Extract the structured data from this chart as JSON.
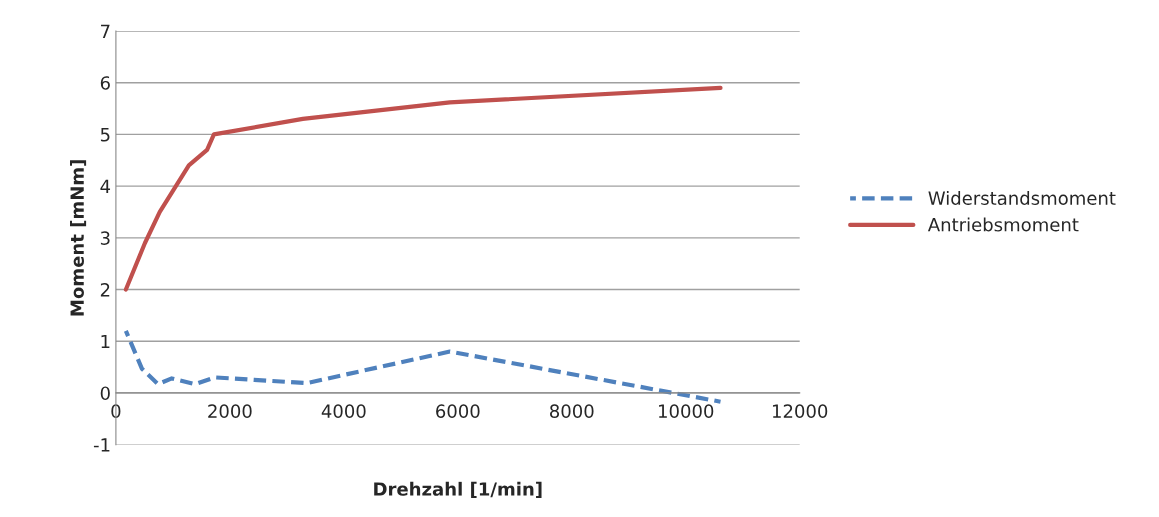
{
  "chart_data": {
    "type": "line",
    "xlabel": "Drehzahl [1/min]",
    "ylabel": "Moment [mNm]",
    "xlim": [
      0,
      12000
    ],
    "xticks": [
      0,
      2000,
      4000,
      6000,
      8000,
      10000,
      12000
    ],
    "ylim": [
      -1,
      7
    ],
    "yticks": [
      -1,
      0,
      1,
      2,
      3,
      4,
      5,
      6,
      7
    ],
    "grid": "y",
    "legend": "right",
    "marker": "none",
    "series": [
      {
        "name": "Widerstandsmoment",
        "color": "#4f81bd",
        "line_style": "dashed",
        "x": [
          175,
          456,
          740,
          980,
          1390,
          1740,
          3350,
          5860,
          10610
        ],
        "values": [
          1.2,
          0.47,
          0.17,
          0.28,
          0.17,
          0.3,
          0.19,
          0.8,
          -0.17
        ]
      },
      {
        "name": "Antriebsmoment",
        "color": "#c0504d",
        "line_style": "solid",
        "x": [
          175,
          510,
          770,
          1280,
          1600,
          1720,
          3280,
          5860,
          10610
        ],
        "values": [
          2.0,
          2.9,
          3.5,
          4.4,
          4.7,
          5.0,
          5.3,
          5.62,
          5.9
        ]
      }
    ]
  }
}
